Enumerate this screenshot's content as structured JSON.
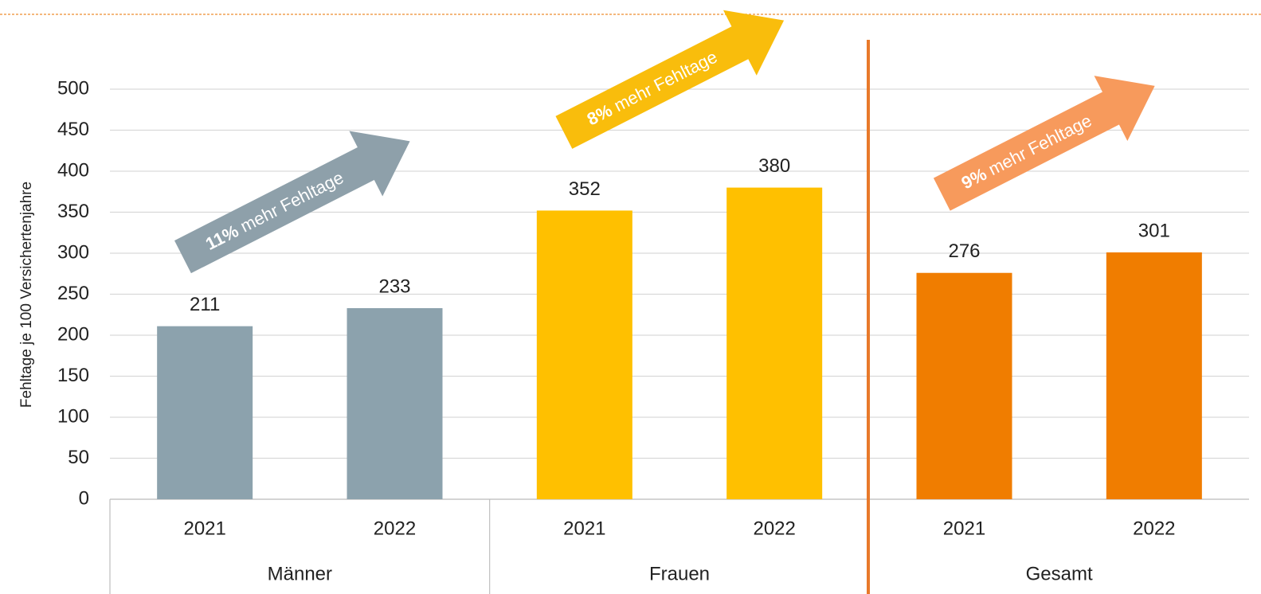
{
  "chart_data": {
    "type": "bar",
    "ylabel": "Fehltage je 100 Versichertenjahre",
    "ylim": [
      0,
      500
    ],
    "yticks": [
      0,
      50,
      100,
      150,
      200,
      250,
      300,
      350,
      400,
      450,
      500
    ],
    "grid": true,
    "groups": [
      {
        "name": "Männer",
        "color": "#8ca2ad",
        "categories": [
          "2021",
          "2022"
        ],
        "values": [
          211,
          233
        ]
      },
      {
        "name": "Frauen",
        "color": "#ffc000",
        "categories": [
          "2021",
          "2022"
        ],
        "values": [
          352,
          380
        ]
      },
      {
        "name": "Gesamt",
        "color": "#f07d00",
        "categories": [
          "2021",
          "2022"
        ],
        "values": [
          276,
          301
        ]
      }
    ],
    "annotations": [
      {
        "bold": "11%",
        "text": "mehr Fehltage",
        "color": "#8ea0aa"
      },
      {
        "bold": "8%",
        "text": "mehr Fehltage",
        "color": "#f9bd0c"
      },
      {
        "bold": "9%",
        "text": "mehr Fehltage",
        "color": "#f79a5c"
      }
    ]
  }
}
